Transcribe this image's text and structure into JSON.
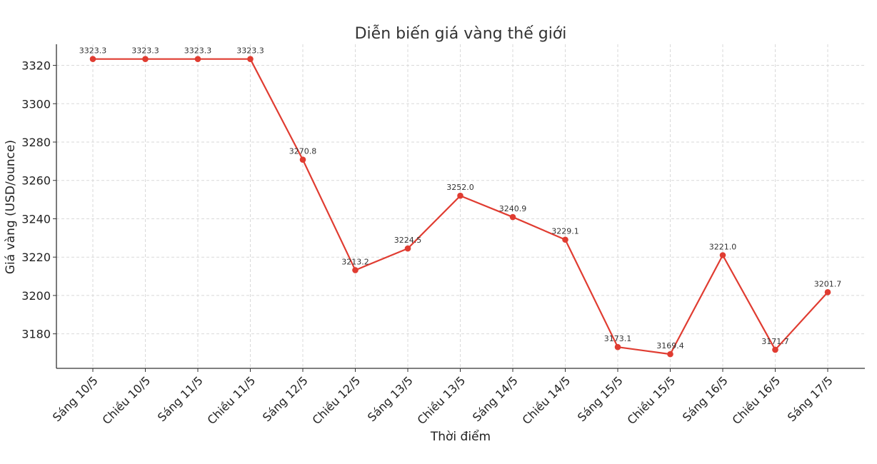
{
  "chart_data": {
    "type": "line",
    "title": "Diễn biến giá vàng thế giới",
    "xlabel": "Thời điểm",
    "ylabel": "Giá vàng (USD/ounce)",
    "categories": [
      "Sáng 10/5",
      "Chiều 10/5",
      "Sáng 11/5",
      "Chiều 11/5",
      "Sáng 12/5",
      "Chiều 12/5",
      "Sáng 13/5",
      "Chiều 13/5",
      "Sáng 14/5",
      "Chiều 14/5",
      "Sáng 15/5",
      "Chiều 15/5",
      "Sáng 16/5",
      "Chiều 16/5",
      "Sáng 17/5"
    ],
    "values": [
      3323.3,
      3323.3,
      3323.3,
      3323.3,
      3270.8,
      3213.2,
      3224.5,
      3252.0,
      3240.9,
      3229.1,
      3173.1,
      3169.4,
      3221.0,
      3171.7,
      3201.7
    ],
    "data_labels": [
      "3323.3",
      "3323.3",
      "3323.3",
      "3323.3",
      "3270.8",
      "3213.2",
      "3224.5",
      "3252.0",
      "3240.9",
      "3229.1",
      "3173.1",
      "3169.4",
      "3221.0",
      "3171.7",
      "3201.7"
    ],
    "yticks": [
      3180,
      3200,
      3220,
      3240,
      3260,
      3280,
      3300,
      3320
    ],
    "ylim": [
      3162,
      3331
    ],
    "grid": true,
    "line_color": "#e03c31"
  }
}
